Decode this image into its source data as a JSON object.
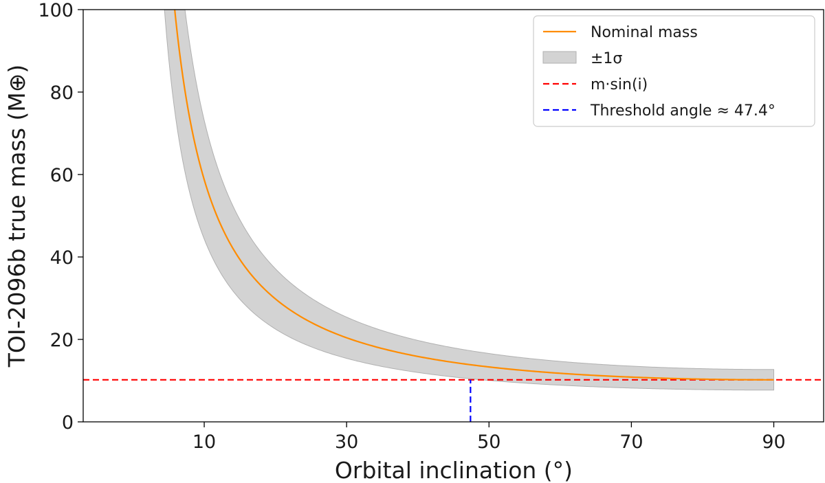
{
  "chart_data": {
    "type": "line",
    "title": "",
    "xlabel": "Orbital inclination (°)",
    "ylabel": "TOI-2096b true mass (M⊕)",
    "xlim": [
      -7,
      97
    ],
    "ylim": [
      0,
      100
    ],
    "x_ticks": [
      10,
      30,
      50,
      70,
      90
    ],
    "y_ticks": [
      0,
      20,
      40,
      60,
      80,
      100
    ],
    "msini": 10.2,
    "sigma": 2.5,
    "threshold_angle": 47.4,
    "x_range": [
      1,
      90
    ],
    "series": [
      {
        "name": "Nominal mass",
        "color": "#ff8c00",
        "style": "solid",
        "formula": "msini / sin(i)"
      },
      {
        "name": "±1σ",
        "color": "#d3d3d3",
        "style": "band",
        "formula": "(msini ± sigma) / sin(i)"
      },
      {
        "name": "m·sin(i)",
        "color": "#ff0000",
        "style": "dashed",
        "y": 10.2
      },
      {
        "name": "Threshold angle ≈ 47.4°",
        "color": "#0000ff",
        "style": "dashed",
        "x": 47.4
      }
    ],
    "legend": {
      "position": "top-right",
      "entries": [
        "Nominal mass",
        "±1σ",
        "m·sin(i)",
        "Threshold angle ≈ 47.4°"
      ]
    }
  }
}
